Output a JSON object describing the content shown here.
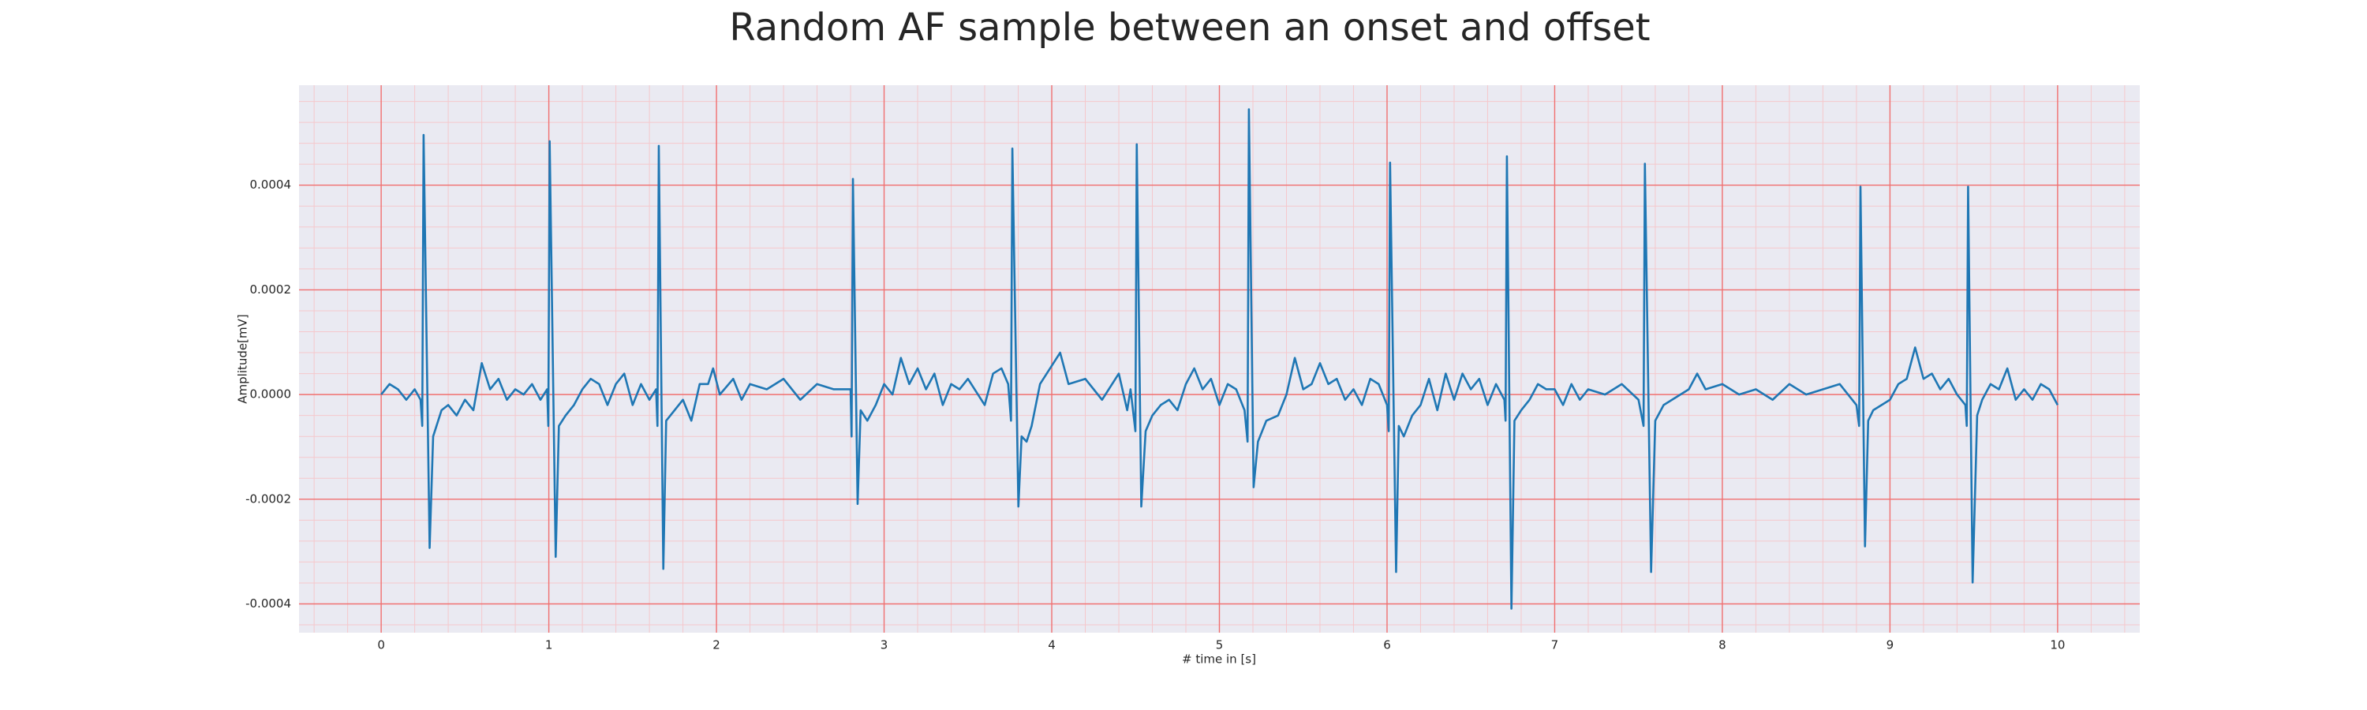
{
  "chart_data": {
    "type": "line",
    "title": "Random AF sample between an onset and offset",
    "xlabel": "# time in [s]",
    "ylabel": "Amplitude[mV]",
    "xlim": [
      -0.49,
      10.49
    ],
    "ylim": [
      -0.000455,
      0.000591
    ],
    "xticks": [
      0,
      1,
      2,
      3,
      4,
      5,
      6,
      7,
      8,
      9,
      10
    ],
    "yticks": [
      -0.0004,
      -0.0002,
      {
        "value": 0,
        "label": "0.0000"
      },
      0.0002,
      0.0004
    ],
    "grid": true,
    "minor_grid": true,
    "series": [
      {
        "color": "#1f77b4",
        "x": [
          0,
          0.05,
          0.1,
          0.15,
          0.2,
          0.235,
          0.245,
          0.253,
          0.289,
          0.31,
          0.33,
          0.36,
          0.4,
          0.45,
          0.5,
          0.55,
          0.6,
          0.65,
          0.7,
          0.75,
          0.8,
          0.85,
          0.9,
          0.95,
          0.99,
          0.997,
          1.005,
          1.041,
          1.06,
          1.1,
          1.15,
          1.2,
          1.25,
          1.3,
          1.35,
          1.4,
          1.45,
          1.5,
          1.55,
          1.6,
          1.64,
          1.648,
          1.656,
          1.683,
          1.7,
          1.75,
          1.8,
          1.85,
          1.9,
          1.95,
          1.98,
          2.02,
          2.1,
          2.15,
          2.2,
          2.3,
          2.4,
          2.5,
          2.6,
          2.7,
          2.8,
          2.806,
          2.814,
          2.842,
          2.86,
          2.9,
          2.95,
          3.0,
          3.05,
          3.1,
          3.15,
          3.2,
          3.25,
          3.3,
          3.35,
          3.4,
          3.45,
          3.5,
          3.6,
          3.65,
          3.7,
          3.74,
          3.757,
          3.765,
          3.801,
          3.82,
          3.85,
          3.88,
          3.93,
          3.97,
          4.05,
          4.1,
          4.2,
          4.3,
          4.4,
          4.45,
          4.47,
          4.499,
          4.507,
          4.534,
          4.56,
          4.6,
          4.65,
          4.7,
          4.75,
          4.8,
          4.85,
          4.9,
          4.95,
          5.0,
          5.05,
          5.1,
          5.15,
          5.168,
          5.176,
          5.204,
          5.23,
          5.28,
          5.35,
          5.4,
          5.45,
          5.5,
          5.55,
          5.6,
          5.65,
          5.7,
          5.75,
          5.8,
          5.85,
          5.9,
          5.95,
          6.0,
          6.01,
          6.018,
          6.054,
          6.07,
          6.1,
          6.15,
          6.2,
          6.25,
          6.3,
          6.35,
          6.4,
          6.45,
          6.5,
          6.55,
          6.6,
          6.65,
          6.7,
          6.707,
          6.715,
          6.742,
          6.76,
          6.8,
          6.85,
          6.9,
          6.95,
          7.0,
          7.05,
          7.1,
          7.15,
          7.2,
          7.3,
          7.4,
          7.5,
          7.53,
          7.538,
          7.575,
          7.6,
          7.65,
          7.7,
          7.8,
          7.85,
          7.9,
          8.0,
          8.1,
          8.2,
          8.3,
          8.4,
          8.5,
          8.6,
          8.7,
          8.8,
          8.816,
          8.824,
          8.851,
          8.87,
          8.9,
          8.95,
          9.0,
          9.05,
          9.1,
          9.15,
          9.2,
          9.25,
          9.3,
          9.35,
          9.4,
          9.45,
          9.458,
          9.466,
          9.493,
          9.52,
          9.55,
          9.6,
          9.65,
          9.7,
          9.75,
          9.8,
          9.85,
          9.9,
          9.95,
          10
        ],
        "values": [
          0,
          2e-05,
          1e-05,
          -1e-05,
          1e-05,
          -1e-05,
          -6e-05,
          0.000496,
          -0.000293,
          -8e-05,
          -6e-05,
          -3e-05,
          -2e-05,
          -4e-05,
          -1e-05,
          -3e-05,
          6e-05,
          1e-05,
          3e-05,
          -1e-05,
          1e-05,
          0,
          2e-05,
          -1e-05,
          1e-05,
          -6e-05,
          0.000484,
          -0.00031,
          -6e-05,
          -4e-05,
          -2e-05,
          1e-05,
          3e-05,
          2e-05,
          -2e-05,
          2e-05,
          4e-05,
          -2e-05,
          2e-05,
          -1e-05,
          1e-05,
          -6e-05,
          0.000475,
          -0.000333,
          -5e-05,
          -3e-05,
          -1e-05,
          -5e-05,
          2e-05,
          2e-05,
          5e-05,
          0,
          3e-05,
          -1e-05,
          2e-05,
          1e-05,
          3e-05,
          -1e-05,
          2e-05,
          1e-05,
          1e-05,
          -8e-05,
          0.000412,
          -0.000209,
          -3e-05,
          -5e-05,
          -2e-05,
          2e-05,
          0,
          7e-05,
          2e-05,
          5e-05,
          1e-05,
          4e-05,
          -2e-05,
          2e-05,
          1e-05,
          3e-05,
          -2e-05,
          4e-05,
          5e-05,
          2e-05,
          -5e-05,
          0.00047,
          -0.000214,
          -8e-05,
          -9e-05,
          -6e-05,
          2e-05,
          4e-05,
          8e-05,
          2e-05,
          3e-05,
          -1e-05,
          4e-05,
          -3e-05,
          1e-05,
          -7e-05,
          0.000478,
          -0.000214,
          -7e-05,
          -4e-05,
          -2e-05,
          -1e-05,
          -3e-05,
          2e-05,
          5e-05,
          1e-05,
          3e-05,
          -2e-05,
          2e-05,
          1e-05,
          -3e-05,
          -9e-05,
          0.000545,
          -0.000177,
          -9e-05,
          -5e-05,
          -4e-05,
          0,
          7e-05,
          1e-05,
          2e-05,
          6e-05,
          2e-05,
          3e-05,
          -1e-05,
          1e-05,
          -2e-05,
          3e-05,
          2e-05,
          -2e-05,
          -7e-05,
          0.000443,
          -0.000339,
          -6e-05,
          -8e-05,
          -4e-05,
          -2e-05,
          3e-05,
          -3e-05,
          4e-05,
          -1e-05,
          4e-05,
          1e-05,
          3e-05,
          -2e-05,
          2e-05,
          -1e-05,
          -5e-05,
          0.000455,
          -0.000409,
          -5e-05,
          -3e-05,
          -1e-05,
          2e-05,
          1e-05,
          1e-05,
          -2e-05,
          2e-05,
          -1e-05,
          1e-05,
          0,
          2e-05,
          -1e-05,
          -6e-05,
          0.000441,
          -0.000339,
          -5e-05,
          -2e-05,
          -1e-05,
          1e-05,
          4e-05,
          1e-05,
          2e-05,
          0,
          1e-05,
          -1e-05,
          2e-05,
          0,
          1e-05,
          2e-05,
          -2e-05,
          -6e-05,
          0.000397,
          -0.00029,
          -5e-05,
          -3e-05,
          -2e-05,
          -1e-05,
          2e-05,
          3e-05,
          9e-05,
          3e-05,
          4e-05,
          1e-05,
          3e-05,
          0,
          -2e-05,
          -6e-05,
          0.000397,
          -0.000359,
          -4e-05,
          -1e-05,
          2e-05,
          1e-05,
          5e-05,
          -1e-05,
          1e-05,
          -1e-05,
          2e-05,
          1e-05,
          -2e-05
        ]
      }
    ]
  }
}
